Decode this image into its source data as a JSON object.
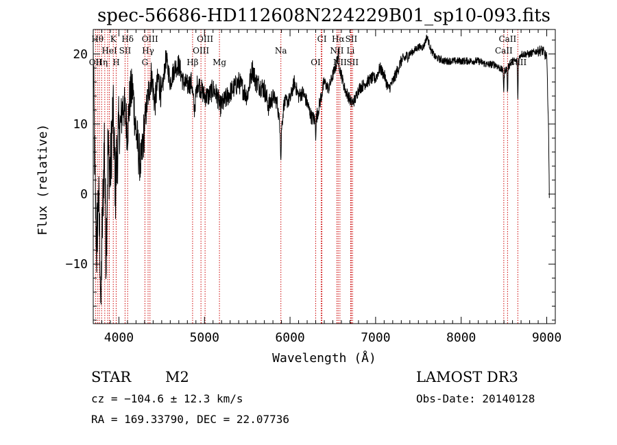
{
  "title": "spec-56686-HD112608N224229B01_sp10-093.fits",
  "info": {
    "obj_type": "STAR",
    "obj_class": "M2",
    "survey": "LAMOST DR3",
    "cz": "cz = −104.6 ± 12.3 km/s",
    "obs_date": "Obs-Date: 20140128",
    "radec": "RA = 169.33790, DEC =  22.07736"
  },
  "chart_data": {
    "type": "line",
    "xlabel": "Wavelength (Å)",
    "ylabel": "Flux (relative)",
    "xlim": [
      3700,
      9100
    ],
    "ylim": [
      -18.5,
      23.5
    ],
    "xticks": [
      4000,
      5000,
      6000,
      7000,
      8000,
      9000
    ],
    "yticks": [
      -10,
      0,
      10,
      20
    ],
    "ytick_labels": [
      "−10",
      "0",
      "10",
      "20"
    ],
    "line_color": "#000000",
    "marker_color": "#cc0000",
    "spectrum_anchors": [
      [
        3700,
        19.5
      ],
      [
        3720,
        2
      ],
      [
        3740,
        -8
      ],
      [
        3760,
        0
      ],
      [
        3790,
        -12.5
      ],
      [
        3810,
        -3
      ],
      [
        3830,
        8
      ],
      [
        3850,
        -9
      ],
      [
        3870,
        6
      ],
      [
        3900,
        3
      ],
      [
        3930,
        12
      ],
      [
        3960,
        1
      ],
      [
        3990,
        8
      ],
      [
        4020,
        10
      ],
      [
        4050,
        13
      ],
      [
        4080,
        11
      ],
      [
        4100,
        9
      ],
      [
        4130,
        14
      ],
      [
        4160,
        15
      ],
      [
        4200,
        9
      ],
      [
        4230,
        6
      ],
      [
        4260,
        4
      ],
      [
        4300,
        10
      ],
      [
        4340,
        14
      ],
      [
        4380,
        17
      ],
      [
        4420,
        13
      ],
      [
        4460,
        16.5
      ],
      [
        4500,
        14
      ],
      [
        4550,
        19.5
      ],
      [
        4600,
        16
      ],
      [
        4650,
        18
      ],
      [
        4700,
        18.5
      ],
      [
        4750,
        16
      ],
      [
        4800,
        15.5
      ],
      [
        4850,
        16
      ],
      [
        4880,
        12
      ],
      [
        4920,
        16
      ],
      [
        4960,
        15
      ],
      [
        5000,
        14
      ],
      [
        5050,
        14
      ],
      [
        5100,
        15
      ],
      [
        5150,
        14
      ],
      [
        5180,
        12.5
      ],
      [
        5220,
        13
      ],
      [
        5300,
        14.5
      ],
      [
        5400,
        16
      ],
      [
        5500,
        14
      ],
      [
        5560,
        18
      ],
      [
        5600,
        16
      ],
      [
        5700,
        15
      ],
      [
        5750,
        12.5
      ],
      [
        5800,
        14
      ],
      [
        5850,
        13
      ],
      [
        5893,
        8.5
      ],
      [
        5930,
        13
      ],
      [
        6000,
        13.5
      ],
      [
        6050,
        16
      ],
      [
        6100,
        14
      ],
      [
        6150,
        14.5
      ],
      [
        6200,
        13
      ],
      [
        6250,
        11
      ],
      [
        6300,
        10.5
      ],
      [
        6330,
        12
      ],
      [
        6400,
        16
      ],
      [
        6450,
        15
      ],
      [
        6500,
        17
      ],
      [
        6540,
        18.5
      ],
      [
        6563,
        20
      ],
      [
        6580,
        18
      ],
      [
        6600,
        17
      ],
      [
        6640,
        15
      ],
      [
        6680,
        14
      ],
      [
        6720,
        13
      ],
      [
        6760,
        13.5
      ],
      [
        6800,
        15
      ],
      [
        6850,
        15.5
      ],
      [
        6900,
        16
      ],
      [
        6950,
        16.5
      ],
      [
        7000,
        16.5
      ],
      [
        7050,
        18
      ],
      [
        7100,
        17
      ],
      [
        7150,
        15
      ],
      [
        7200,
        16
      ],
      [
        7250,
        17.5
      ],
      [
        7300,
        19
      ],
      [
        7350,
        19.5
      ],
      [
        7400,
        20
      ],
      [
        7450,
        20.5
      ],
      [
        7500,
        21
      ],
      [
        7560,
        21
      ],
      [
        7600,
        22.5
      ],
      [
        7650,
        20.5
      ],
      [
        7700,
        19.5
      ],
      [
        7800,
        19
      ],
      [
        7900,
        19
      ],
      [
        8000,
        19
      ],
      [
        8100,
        19
      ],
      [
        8200,
        19
      ],
      [
        8300,
        18.5
      ],
      [
        8400,
        18.5
      ],
      [
        8498,
        17.5
      ],
      [
        8542,
        18
      ],
      [
        8600,
        19
      ],
      [
        8662,
        19
      ],
      [
        8700,
        20
      ],
      [
        8800,
        20
      ],
      [
        8900,
        20.5
      ],
      [
        8950,
        20.5
      ],
      [
        9000,
        19.5
      ],
      [
        9020,
        10
      ],
      [
        9030,
        0
      ]
    ],
    "absorption_features": [
      {
        "x": 3790,
        "depth": 6
      },
      {
        "x": 5893,
        "depth": 4
      },
      {
        "x": 6300,
        "depth": 2
      },
      {
        "x": 8498,
        "depth": 3
      },
      {
        "x": 8542,
        "depth": 4
      },
      {
        "x": 8662,
        "depth": 6
      }
    ],
    "line_markers": [
      {
        "wavelength": 3727,
        "label": "OII",
        "row": 3
      },
      {
        "wavelength": 3750,
        "label": "Hθ",
        "row": 1
      },
      {
        "wavelength": 3771,
        "label": "",
        "row": 0
      },
      {
        "wavelength": 3798,
        "label": "Hη",
        "row": 3
      },
      {
        "wavelength": 3835,
        "label": "",
        "row": 0
      },
      {
        "wavelength": 3869,
        "label": "",
        "row": 0
      },
      {
        "wavelength": 3889,
        "label": "HeI",
        "row": 2
      },
      {
        "wavelength": 3934,
        "label": "K",
        "row": 1
      },
      {
        "wavelength": 3968,
        "label": "H",
        "row": 3
      },
      {
        "wavelength": 4072,
        "label": "SII",
        "row": 2
      },
      {
        "wavelength": 4102,
        "label": "Hδ",
        "row": 1
      },
      {
        "wavelength": 4304,
        "label": "G",
        "row": 3
      },
      {
        "wavelength": 4341,
        "label": "Hγ",
        "row": 2
      },
      {
        "wavelength": 4363,
        "label": "OIII",
        "row": 1
      },
      {
        "wavelength": 4861,
        "label": "Hβ",
        "row": 3
      },
      {
        "wavelength": 4959,
        "label": "OIII",
        "row": 2
      },
      {
        "wavelength": 5007,
        "label": "OIII",
        "row": 1
      },
      {
        "wavelength": 5175,
        "label": "Mg",
        "row": 3
      },
      {
        "wavelength": 5893,
        "label": "Na",
        "row": 2
      },
      {
        "wavelength": 6300,
        "label": "OI",
        "row": 3
      },
      {
        "wavelength": 6364,
        "label": "",
        "row": 0
      },
      {
        "wavelength": 6373,
        "label": "CI",
        "row": 1
      },
      {
        "wavelength": 6548,
        "label": "NII",
        "row": 2
      },
      {
        "wavelength": 6563,
        "label": "Hα",
        "row": 1
      },
      {
        "wavelength": 6583,
        "label": "NII",
        "row": 3
      },
      {
        "wavelength": 6708,
        "label": "Li",
        "row": 2
      },
      {
        "wavelength": 6716,
        "label": "SII",
        "row": 1
      },
      {
        "wavelength": 6731,
        "label": "SII",
        "row": 3
      },
      {
        "wavelength": 8498,
        "label": "CaII",
        "row": 2
      },
      {
        "wavelength": 8542,
        "label": "CaII",
        "row": 1
      },
      {
        "wavelength": 8662,
        "label": "CaII",
        "row": 3
      }
    ]
  }
}
